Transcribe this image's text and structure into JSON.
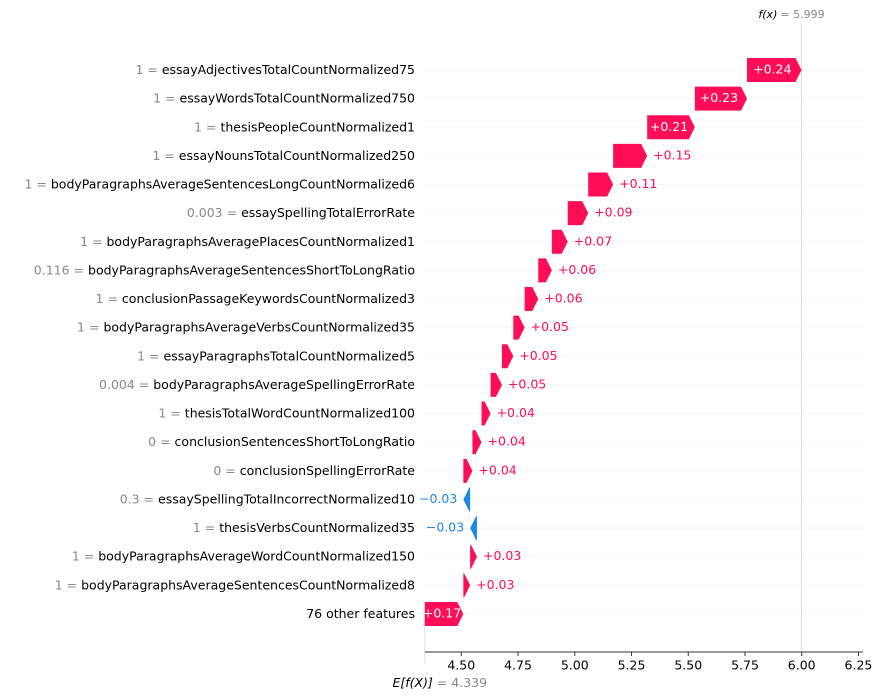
{
  "chart_data": {
    "type": "waterfall",
    "features": [
      {
        "value_text": "1 =",
        "name": "essayAdjectivesTotalCountNormalized75"
      },
      {
        "value_text": "1 =",
        "name": "essayWordsTotalCountNormalized750"
      },
      {
        "value_text": "1 =",
        "name": "thesisPeopleCountNormalized1"
      },
      {
        "value_text": "1 =",
        "name": "essayNounsTotalCountNormalized250"
      },
      {
        "value_text": "1 =",
        "name": "bodyParagraphsAverageSentencesLongCountNormalized6"
      },
      {
        "value_text": "0.003 =",
        "name": "essaySpellingTotalErrorRate"
      },
      {
        "value_text": "1 =",
        "name": "bodyParagraphsAveragePlacesCountNormalized1"
      },
      {
        "value_text": "0.116 =",
        "name": "bodyParagraphsAverageSentencesShortToLongRatio"
      },
      {
        "value_text": "1 =",
        "name": "conclusionPassageKeywordsCountNormalized3"
      },
      {
        "value_text": "1 =",
        "name": "bodyParagraphsAverageVerbsCountNormalized35"
      },
      {
        "value_text": "1 =",
        "name": "essayParagraphsTotalCountNormalized5"
      },
      {
        "value_text": "0.004 =",
        "name": "bodyParagraphsAverageSpellingErrorRate"
      },
      {
        "value_text": "1 =",
        "name": "thesisTotalWordCountNormalized100"
      },
      {
        "value_text": "0 =",
        "name": "conclusionSentencesShortToLongRatio"
      },
      {
        "value_text": "0 =",
        "name": "conclusionSpellingErrorRate"
      },
      {
        "value_text": "0.3 =",
        "name": "essaySpellingTotalIncorrectNormalized10"
      },
      {
        "value_text": "1 =",
        "name": "thesisVerbsCountNormalized35"
      },
      {
        "value_text": "1 =",
        "name": "bodyParagraphsAverageWordCountNormalized150"
      },
      {
        "value_text": "1 =",
        "name": "bodyParagraphsAverageSentencesCountNormalized8"
      },
      {
        "name": "76 other features"
      }
    ],
    "values": [
      0.24,
      0.23,
      0.21,
      0.15,
      0.11,
      0.09,
      0.07,
      0.06,
      0.06,
      0.05,
      0.05,
      0.05,
      0.04,
      0.04,
      0.04,
      -0.03,
      -0.03,
      0.03,
      0.03,
      0.17
    ],
    "value_labels": [
      "+0.24",
      "+0.23",
      "+0.21",
      "+0.15",
      "+0.11",
      "+0.09",
      "+0.07",
      "+0.06",
      "+0.06",
      "+0.05",
      "+0.05",
      "+0.05",
      "+0.04",
      "+0.04",
      "+0.04",
      "−0.03",
      "−0.03",
      "+0.03",
      "+0.03",
      "+0.17"
    ],
    "positive_color": "#ff0d57",
    "negative_color": "#1e88e5",
    "base": {
      "label": "E[f(X)]",
      "value": 4.339,
      "value_label": "= 4.339"
    },
    "output": {
      "label": "f(x)",
      "value": 5.999,
      "value_label": "= 5.999"
    },
    "xlim": [
      4.34,
      6.27
    ],
    "xticks": [
      {
        "value": 4.5,
        "label": "4.50"
      },
      {
        "value": 4.75,
        "label": "4.75"
      },
      {
        "value": 5.0,
        "label": "5.00"
      },
      {
        "value": 5.25,
        "label": "5.25"
      },
      {
        "value": 5.5,
        "label": "5.50"
      },
      {
        "value": 5.75,
        "label": "5.75"
      },
      {
        "value": 6.0,
        "label": "6.00"
      },
      {
        "value": 6.25,
        "label": "6.25"
      }
    ]
  }
}
